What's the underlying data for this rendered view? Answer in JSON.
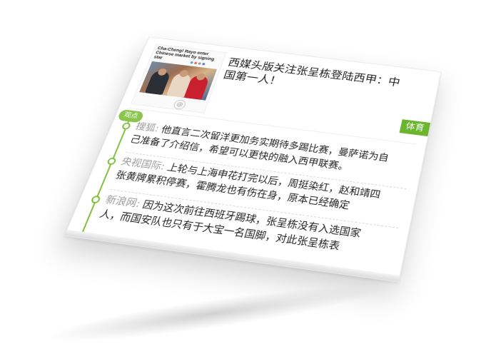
{
  "thumbnail": {
    "headline": "Cha-Cheng! Rayo enter Chinese market by signing star",
    "share_icons": [
      "share-icon-1",
      "share-icon-2",
      "share-icon-3",
      "share-icon-4"
    ],
    "badge_icon": "at-icon"
  },
  "article": {
    "title": "西媒头版关注张呈栋登陆西甲：中国第一人！",
    "category_tag": "体育"
  },
  "viewpoints": {
    "label": "观点",
    "items": [
      {
        "source": "搜狐:",
        "text": " 他直言二次留洋更加务实期待多踢比赛，曼萨诺为自己准备了介绍信，希望可以更快的融入西甲联赛。"
      },
      {
        "source": "央视国际:",
        "text": " 上轮与上海申花打完以后，周挺染红，赵和靖四张黄牌累积停赛，霍腾龙也有伤在身，原本已经确定"
      },
      {
        "source": "新浪网:",
        "text": " 因为这次前往西班牙踢球，张呈栋没有入选国家人，而国安队也只有于大宝一名国脚，对此张呈栋表"
      }
    ]
  },
  "colors": {
    "accent_green": "#6cb52f",
    "timeline_green": "#7fc03c",
    "source_gray": "#9a9a9a",
    "text_dark": "#222222"
  }
}
